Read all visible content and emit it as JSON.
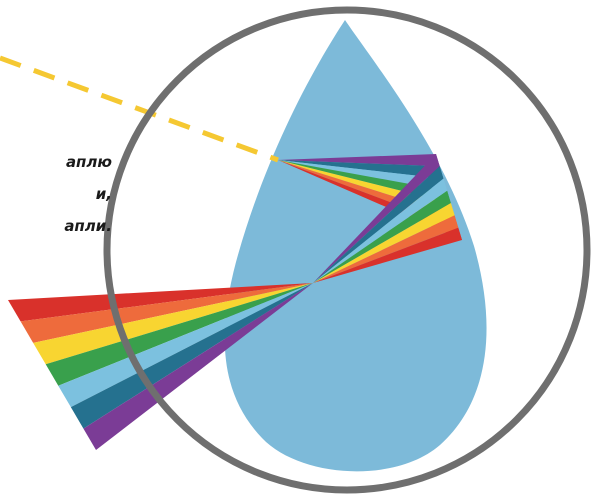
{
  "caption": {
    "lines": [
      "аплю",
      "и,",
      "апли."
    ]
  },
  "colors": {
    "drop": "#7dbad9",
    "circle": "#6f6f6f",
    "sun_ray": "#f5c832",
    "spectrum": [
      "#d9312b",
      "#ee6b3c",
      "#f8d531",
      "#39a04c",
      "#7cc1df",
      "#25718f",
      "#7b3c96"
    ]
  },
  "icons": {
    "drop": "water-drop-icon",
    "magnifier": "magnifier-circle-icon"
  }
}
